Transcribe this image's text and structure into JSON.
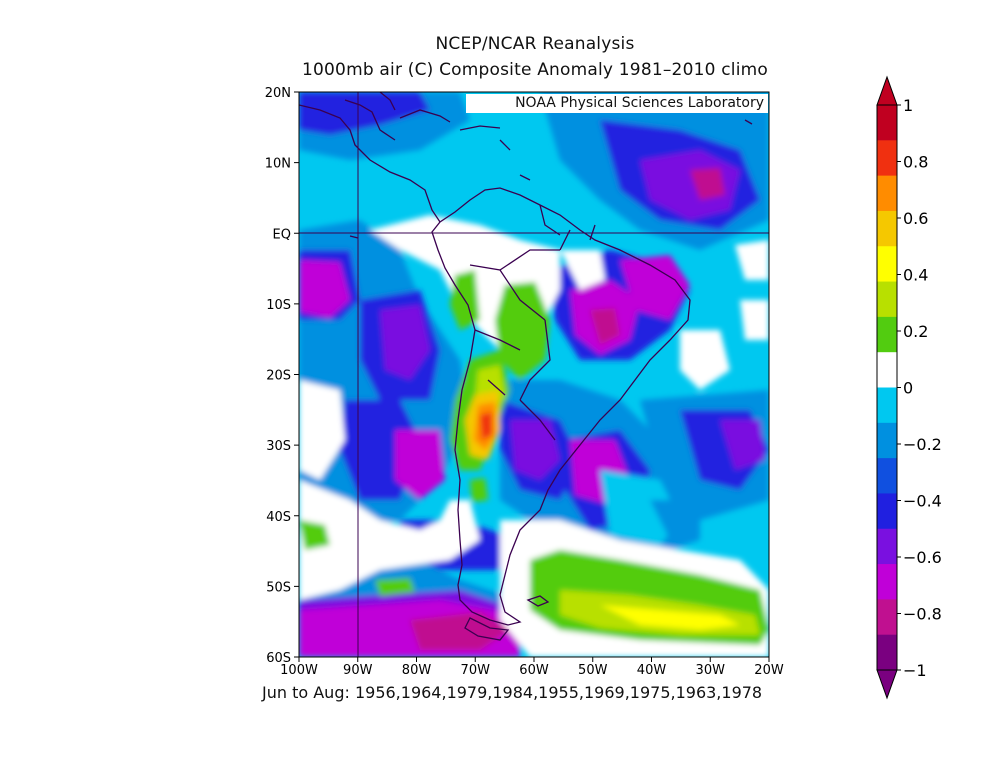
{
  "title": "NCEP/NCAR Reanalysis",
  "subtitle": "1000mb air (C) Composite Anomaly 1981–2010 climo",
  "credit": "NOAA Physical Sciences Laboratory",
  "caption": "Jun to Aug: 1956,1964,1979,1984,1955,1969,1975,1963,1978",
  "map": {
    "lon_range": [
      -100,
      -20
    ],
    "lat_range": [
      -60,
      20
    ],
    "lat_ticks": [
      "20N",
      "10N",
      "EQ",
      "10S",
      "20S",
      "30S",
      "40S",
      "50S",
      "60S"
    ],
    "lon_ticks": [
      "100W",
      "90W",
      "80W",
      "70W",
      "60W",
      "50W",
      "40W",
      "30W",
      "20W"
    ]
  },
  "colorbar": {
    "labels": [
      "1",
      "0.8",
      "0.6",
      "0.4",
      "0.2",
      "0",
      "−0.2",
      "−0.4",
      "−0.6",
      "−0.8",
      "−1"
    ],
    "colors": [
      "#c00020",
      "#f03010",
      "#ff8c00",
      "#f5c800",
      "#ffff00",
      "#b8e000",
      "#52cc10",
      "#ffffff",
      "#00c8f0",
      "#0090e0",
      "#1050e0",
      "#2020e0",
      "#7a10e0",
      "#c000d8",
      "#c01090",
      "#7a0080"
    ]
  }
}
